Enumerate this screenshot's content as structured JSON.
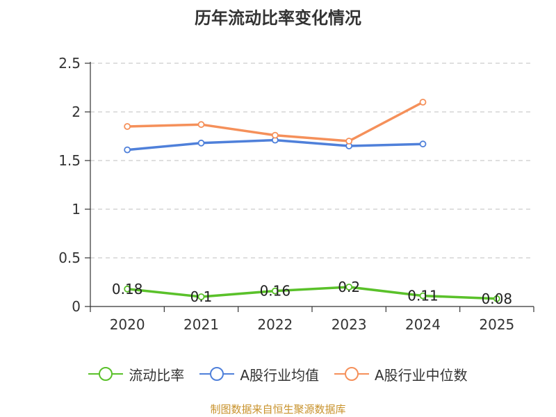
{
  "chart_data": {
    "type": "line",
    "title": "历年流动比率变化情况",
    "categories": [
      "2020",
      "2021",
      "2022",
      "2023",
      "2024",
      "2025"
    ],
    "ylim": [
      0,
      2.5
    ],
    "yticks": [
      0,
      0.5,
      1,
      1.5,
      2,
      2.5
    ],
    "ytick_labels": [
      "0",
      "0.5",
      "1",
      "1.5",
      "2",
      "2.5"
    ],
    "grid": true,
    "legend_position": "bottom",
    "series": [
      {
        "name": "流动比率",
        "color": "#5ac12a",
        "values": [
          0.18,
          0.1,
          0.16,
          0.2,
          0.11,
          0.08
        ],
        "data_labels": [
          "0.18",
          "0.1",
          "0.16",
          "0.2",
          "0.11",
          "0.08"
        ]
      },
      {
        "name": "A股行业均值",
        "color": "#4f80da",
        "values": [
          1.61,
          1.68,
          1.71,
          1.65,
          1.67,
          null
        ]
      },
      {
        "name": "A股行业中位数",
        "color": "#f5905a",
        "values": [
          1.85,
          1.87,
          1.76,
          1.7,
          2.1,
          null
        ]
      }
    ]
  },
  "source": "制图数据来自恒生聚源数据库"
}
